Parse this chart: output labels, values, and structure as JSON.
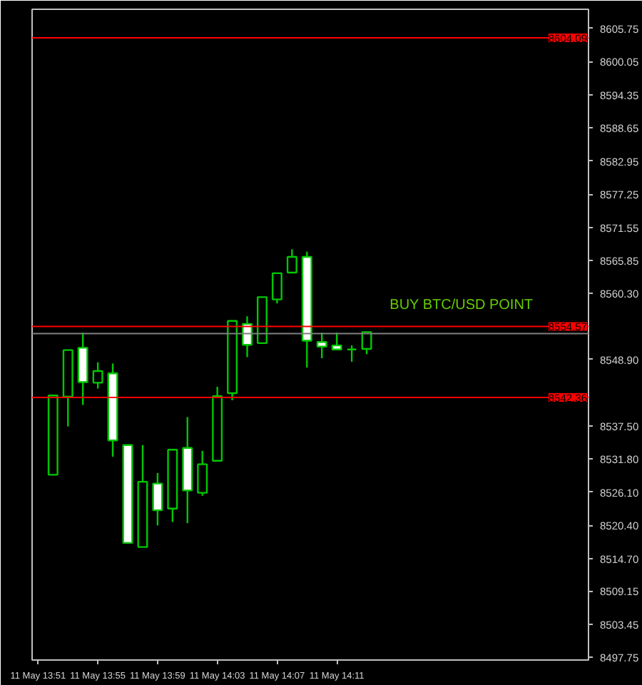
{
  "chart_data": {
    "type": "candlestick",
    "categories": [
      "11 May 13:51",
      null,
      null,
      null,
      "11 May 13:55",
      null,
      null,
      null,
      "11 May 13:59",
      null,
      null,
      null,
      "11 May 14:03",
      null,
      null,
      null,
      "11 May 14:07",
      null,
      null,
      null,
      "11 May 14:11",
      null,
      null,
      null,
      null,
      null,
      null,
      null,
      null,
      null,
      null,
      null,
      null,
      null,
      null,
      null,
      null
    ],
    "ohlc": [
      null,
      [
        8529.1,
        8542.7,
        8529.1,
        8542.7
      ],
      [
        8542.5,
        8550.5,
        8537.4,
        8550.5
      ],
      [
        8550.9,
        8553.5,
        8541.1,
        8545.0
      ],
      [
        8544.9,
        8548.4,
        8543.9,
        8546.9
      ],
      [
        8546.5,
        8548.2,
        8532.2,
        8535.0
      ],
      [
        8534.2,
        8534.2,
        8517.4,
        8517.4
      ],
      [
        8516.7,
        8534.2,
        8516.7,
        8527.9
      ],
      [
        8527.6,
        8529.4,
        8520.4,
        8523.0
      ],
      [
        8523.3,
        8533.4,
        8521.0,
        8533.4
      ],
      [
        8533.7,
        8539.0,
        8520.8,
        8526.4
      ],
      [
        8526.0,
        8533.2,
        8525.5,
        8530.9
      ],
      [
        8531.5,
        8544.2,
        8531.5,
        8542.6
      ],
      [
        8543.1,
        8555.5,
        8541.9,
        8555.5
      ],
      [
        8555.0,
        8556.3,
        8549.3,
        8551.4
      ],
      [
        8551.7,
        8559.6,
        8551.7,
        8559.6
      ],
      [
        8559.2,
        8563.7,
        8558.5,
        8563.7
      ],
      [
        8563.8,
        8567.8,
        8563.8,
        8566.5
      ],
      [
        8566.5,
        8567.4,
        8547.5,
        8552.1
      ],
      [
        8551.9,
        8553.5,
        8549.1,
        8551.1
      ],
      [
        8551.3,
        8553.5,
        8550.6,
        8550.6
      ],
      [
        8550.6,
        8551.3,
        8548.5,
        8550.6
      ],
      [
        8550.7,
        8553.6,
        8549.8,
        8553.6
      ],
      null,
      null,
      null,
      null,
      null,
      null,
      null,
      null,
      null,
      null,
      null,
      null,
      null,
      null
    ],
    "color": "#00c800",
    "colors": [
      null,
      "#000000",
      "#000000",
      "#ffffff",
      "#000000",
      "#ffffff",
      "#ffffff",
      "#000000",
      "#ffffff",
      "#000000",
      "#ffffff",
      "#000000",
      "#000000",
      "#000000",
      "#ffffff",
      "#000000",
      "#000000",
      "#000000",
      "#ffffff",
      "#ffffff",
      "#ffffff",
      "#00c800",
      "#000000",
      null,
      null,
      null,
      null,
      null,
      null,
      null,
      null,
      null,
      null,
      null,
      null,
      null,
      null
    ],
    "ylim": [
      8497.3,
      8609.0
    ],
    "yticks": [
      8605.75,
      8600.05,
      8594.35,
      8588.65,
      8582.95,
      8577.25,
      8571.55,
      8565.85,
      {
        "value": 8560.3,
        "label": "8560.30"
      },
      {
        "value": 8548.9,
        "label": "8548.90"
      },
      {
        "value": 8537.5,
        "label": "8537.50"
      },
      {
        "value": 8531.8,
        "label": "8531.80"
      },
      {
        "value": 8526.1,
        "label": "8526.10"
      },
      {
        "value": 8520.4,
        "label": "8520.40"
      },
      {
        "value": 8514.7,
        "label": "8514.70"
      },
      8509.15,
      8503.45,
      8497.75
    ],
    "ref_lines": [
      {
        "axis": "y",
        "value": 8604.09,
        "label": "8604.09",
        "color": "#ff0000"
      },
      {
        "axis": "y",
        "value": 8554.57,
        "label": "8554.57",
        "color": "#ff0000"
      },
      {
        "axis": "y",
        "value": 8553.34,
        "label": null,
        "color": "#808080"
      },
      {
        "axis": "y",
        "value": 8542.36,
        "label": "8542.36",
        "color": "#ff0000"
      }
    ],
    "annotations": [
      "BUY BTC/USD  POINT"
    ],
    "grid": false
  }
}
